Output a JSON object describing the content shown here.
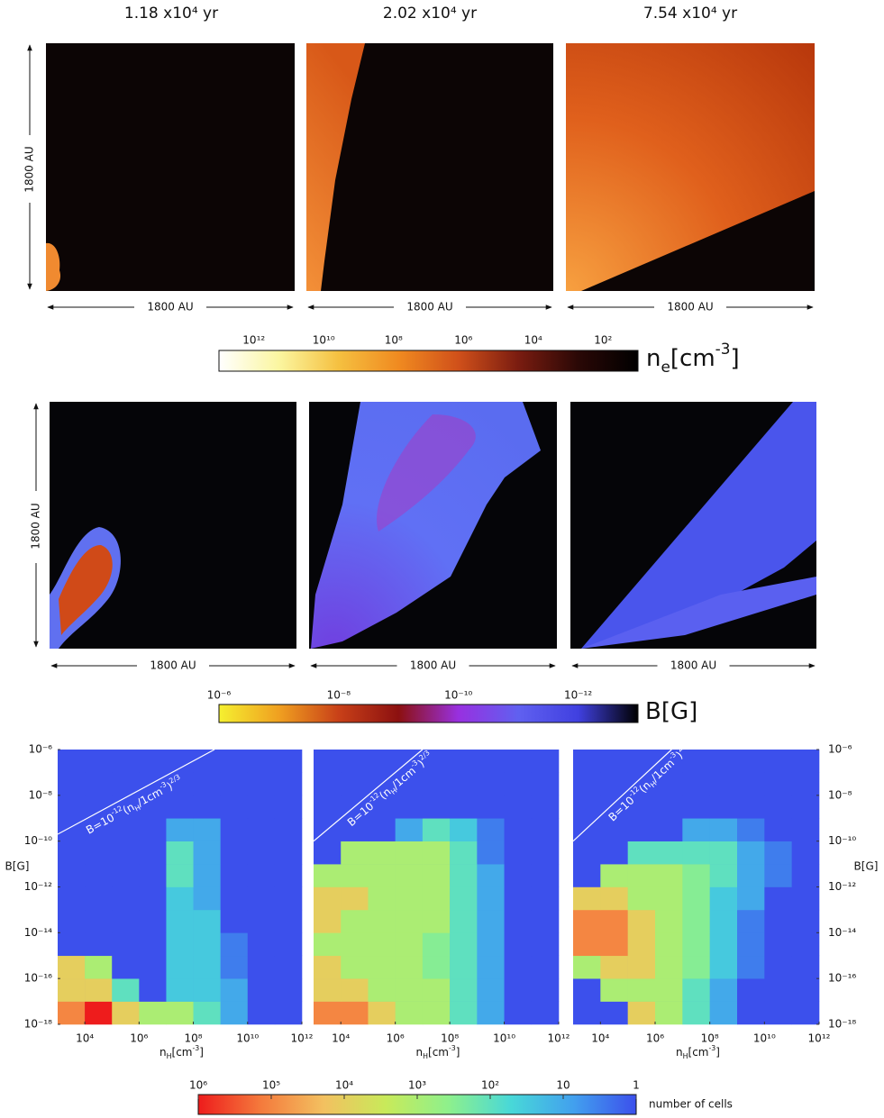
{
  "times": [
    "1.18 x10⁴ yr",
    "2.02 x10⁴ yr",
    "7.54 x10⁴ yr"
  ],
  "density_row": {
    "scale_y": "1800 AU",
    "scale_x": [
      "1800 AU",
      "1800 AU",
      "1800 AU"
    ],
    "colorbar": {
      "label": [
        {
          "t": "n"
        },
        {
          "t": "e",
          "sub": true
        },
        {
          "t": "[cm"
        },
        {
          "t": "-3",
          "sup": true
        },
        {
          "t": "]"
        }
      ],
      "clim": [
        10000000000000.0,
        10
      ],
      "log": true,
      "colors": [
        "#ffffff",
        "#fbf6a0",
        "#f5c040",
        "#f08a20",
        "#d0501a",
        "#7a1c10",
        "#2a0806",
        "#000000"
      ],
      "ticks": [
        {
          "value": 1000000000000.0,
          "label": "10¹²"
        },
        {
          "value": 10000000000.0,
          "label": "10¹⁰"
        },
        {
          "value": 100000000.0,
          "label": "10⁸"
        },
        {
          "value": 1000000.0,
          "label": "10⁶"
        },
        {
          "value": 10000.0,
          "label": "10⁴"
        },
        {
          "value": 100,
          "label": "10²"
        }
      ]
    }
  },
  "field_row": {
    "scale_y": "1800 AU",
    "scale_x": [
      "1800 AU",
      "1800 AU",
      "1800 AU"
    ],
    "colorbar": {
      "label": [
        {
          "t": "B[G]"
        }
      ],
      "clim": [
        1e-06,
        1e-13
      ],
      "log": true,
      "colors": [
        "#f5f030",
        "#f0a020",
        "#c84018",
        "#8c1010",
        "#9830e0",
        "#6060f0",
        "#4040e0",
        "#000000"
      ],
      "ticks": [
        {
          "value": 1e-06,
          "label": "10⁻⁶"
        },
        {
          "value": 1e-08,
          "label": "10⁻⁸"
        },
        {
          "value": 1e-10,
          "label": "10⁻¹⁰"
        },
        {
          "value": 1e-12,
          "label": "10⁻¹²"
        }
      ]
    }
  },
  "cells_colorbar": {
    "label": "number of cells",
    "clim": [
      1000000.0,
      1
    ],
    "log": true,
    "colors": [
      "#ee1c1c",
      "#f47a3c",
      "#f3c060",
      "#c8ea5a",
      "#8ef08c",
      "#48d8d8",
      "#42a0ee",
      "#3c50ec"
    ],
    "ticks": [
      {
        "value": 1000000.0,
        "label": "10⁶"
      },
      {
        "value": 100000.0,
        "label": "10⁵"
      },
      {
        "value": 10000.0,
        "label": "10⁴"
      },
      {
        "value": 1000.0,
        "label": "10³"
      },
      {
        "value": 100,
        "label": "10²"
      },
      10,
      1
    ]
  },
  "chart_data": [
    {
      "type": "heatmap",
      "log_x": true,
      "log_y": true,
      "xlim": [
        1000.0,
        1000000000000.0
      ],
      "ylim": [
        1e-18,
        1e-06
      ],
      "xticks": [
        {
          "value": 10000.0,
          "label": "10⁴"
        },
        {
          "value": 1000000.0,
          "label": "10⁶"
        },
        {
          "value": 100000000.0,
          "label": "10⁸"
        },
        {
          "value": 10000000000.0,
          "label": "10¹⁰"
        },
        {
          "value": 1000000000000.0,
          "label": "10¹²"
        }
      ],
      "yticks": [
        {
          "value": 1e-06,
          "label": "10⁻⁶"
        },
        {
          "value": 1e-08,
          "label": "10⁻⁸"
        },
        {
          "value": 1e-10,
          "label": "10⁻¹⁰"
        },
        {
          "value": 1e-12,
          "label": "10⁻¹²"
        },
        {
          "value": 1e-14,
          "label": "10⁻¹⁴"
        },
        {
          "value": 1e-16,
          "label": "10⁻¹⁶"
        },
        {
          "value": 1e-18,
          "label": "10⁻¹⁸"
        }
      ],
      "y_axis_side": "left",
      "y_label": "B[G]",
      "x_label": [
        {
          "t": "n"
        },
        {
          "t": "H",
          "sub": true
        },
        {
          "t": "[cm"
        },
        {
          "t": "-3",
          "sup": true
        },
        {
          "t": "]"
        }
      ],
      "annotation": [
        {
          "t": "B=10"
        },
        {
          "t": "-12",
          "sup": true
        },
        {
          "t": "(n"
        },
        {
          "t": "H",
          "sub": true
        },
        {
          "t": "/1cm"
        },
        {
          "t": "-3",
          "sup": true
        },
        {
          "t": ")"
        },
        {
          "t": "2/3",
          "sup": true
        }
      ],
      "relation_line": {
        "x": [
          1000.0,
          600000000.0
        ],
        "y": [
          2e-10,
          1e-06
        ]
      },
      "xbins": [
        1000.0,
        10000.0,
        100000.0,
        1000000.0,
        10000000.0,
        100000000.0,
        1000000000.0,
        10000000000.0,
        100000000000.0,
        1000000000000.0
      ],
      "ybins": [
        1e-18,
        1e-17,
        1e-16,
        1e-15,
        1e-14,
        1e-13,
        1e-12,
        1e-11,
        1e-10,
        1e-09,
        1e-08,
        1e-07,
        1e-06
      ],
      "z": [
        [
          100000.0,
          1000000.0,
          10000.0,
          1000.0,
          1000.0,
          100,
          10,
          1,
          1
        ],
        [
          10000.0,
          10000.0,
          100,
          1,
          30,
          30,
          10,
          1,
          1
        ],
        [
          10000.0,
          1000.0,
          1,
          1,
          30,
          30,
          3,
          1,
          1
        ],
        [
          1,
          1,
          1,
          1,
          30,
          30,
          3,
          1,
          1
        ],
        [
          1,
          1,
          1,
          1,
          30,
          30,
          1,
          1,
          1
        ],
        [
          1,
          1,
          1,
          1,
          30,
          10,
          1,
          1,
          1
        ],
        [
          1,
          1,
          1,
          1,
          100,
          10,
          1,
          1,
          1
        ],
        [
          1,
          1,
          1,
          1,
          100,
          10,
          1,
          1,
          1
        ],
        [
          1,
          1,
          1,
          1,
          10,
          10,
          1,
          1,
          1
        ],
        [
          1,
          1,
          1,
          1,
          1,
          1,
          1,
          1,
          1
        ],
        [
          1,
          1,
          1,
          1,
          1,
          1,
          1,
          1,
          1
        ],
        [
          1,
          1,
          1,
          1,
          1,
          1,
          1,
          1,
          1
        ]
      ]
    },
    {
      "type": "heatmap",
      "log_x": true,
      "log_y": true,
      "xlim": [
        1000.0,
        1000000000000.0
      ],
      "ylim": [
        1e-18,
        1e-06
      ],
      "xticks": [
        {
          "value": 10000.0,
          "label": "10⁴"
        },
        {
          "value": 1000000.0,
          "label": "10⁶"
        },
        {
          "value": 100000000.0,
          "label": "10⁸"
        },
        {
          "value": 10000000000.0,
          "label": "10¹⁰"
        },
        {
          "value": 1000000000000.0,
          "label": "10¹²"
        }
      ],
      "x_label": [
        {
          "t": "n"
        },
        {
          "t": "H",
          "sub": true
        },
        {
          "t": "[cm"
        },
        {
          "t": "-3",
          "sup": true
        },
        {
          "t": "]"
        }
      ],
      "annotation": [
        {
          "t": "B=10"
        },
        {
          "t": "-12",
          "sup": true
        },
        {
          "t": "(n"
        },
        {
          "t": "H",
          "sub": true
        },
        {
          "t": "/1cm"
        },
        {
          "t": "-3",
          "sup": true
        },
        {
          "t": ")"
        },
        {
          "t": "2/3",
          "sup": true
        }
      ],
      "relation_line": {
        "x": [
          1000.0,
          10000000.0
        ],
        "y": [
          1e-10,
          1e-06
        ]
      },
      "xbins": [
        1000.0,
        10000.0,
        100000.0,
        1000000.0,
        10000000.0,
        100000000.0,
        1000000000.0,
        10000000000.0,
        100000000000.0,
        1000000000000.0
      ],
      "ybins": [
        1e-18,
        1e-17,
        1e-16,
        1e-15,
        1e-14,
        1e-13,
        1e-12,
        1e-11,
        1e-10,
        1e-09,
        1e-08,
        1e-07,
        1e-06
      ],
      "z": [
        [
          100000.0,
          100000.0,
          10000.0,
          1000.0,
          1000.0,
          100,
          10,
          1,
          1
        ],
        [
          10000.0,
          10000.0,
          1000.0,
          1000.0,
          1000.0,
          100,
          10,
          1,
          1
        ],
        [
          10000.0,
          1000.0,
          1000.0,
          1000.0,
          300,
          100,
          10,
          1,
          1
        ],
        [
          1000.0,
          1000.0,
          1000.0,
          1000.0,
          300,
          100,
          10,
          1,
          1
        ],
        [
          10000.0,
          1000.0,
          1000.0,
          1000.0,
          1000.0,
          100,
          10,
          1,
          1
        ],
        [
          10000.0,
          10000.0,
          1000.0,
          1000.0,
          1000.0,
          100,
          10,
          1,
          1
        ],
        [
          1000.0,
          1000.0,
          1000.0,
          1000.0,
          1000.0,
          100,
          10,
          1,
          1
        ],
        [
          1,
          1000.0,
          1000.0,
          1000.0,
          1000.0,
          100,
          3,
          1,
          1
        ],
        [
          1,
          1,
          1,
          10,
          100,
          30,
          3,
          1,
          1
        ],
        [
          1,
          1,
          1,
          1,
          1,
          1,
          1,
          1,
          1
        ],
        [
          1,
          1,
          1,
          1,
          1,
          1,
          1,
          1,
          1
        ],
        [
          1,
          1,
          1,
          1,
          1,
          1,
          1,
          1,
          1
        ]
      ]
    },
    {
      "type": "heatmap",
      "log_x": true,
      "log_y": true,
      "xlim": [
        1000.0,
        1000000000000.0
      ],
      "ylim": [
        1e-18,
        1e-06
      ],
      "xticks": [
        {
          "value": 10000.0,
          "label": "10⁴"
        },
        {
          "value": 1000000.0,
          "label": "10⁶"
        },
        {
          "value": 100000000.0,
          "label": "10⁸"
        },
        {
          "value": 10000000000.0,
          "label": "10¹⁰"
        },
        {
          "value": 1000000000000.0,
          "label": "10¹²"
        }
      ],
      "yticks": [
        {
          "value": 1e-06,
          "label": "10⁻⁶"
        },
        {
          "value": 1e-08,
          "label": "10⁻⁸"
        },
        {
          "value": 1e-10,
          "label": "10⁻¹⁰"
        },
        {
          "value": 1e-12,
          "label": "10⁻¹²"
        },
        {
          "value": 1e-14,
          "label": "10⁻¹⁴"
        },
        {
          "value": 1e-16,
          "label": "10⁻¹⁶"
        },
        {
          "value": 1e-18,
          "label": "10⁻¹⁸"
        }
      ],
      "y_axis_side": "right",
      "y_label": "B[G]",
      "x_label": [
        {
          "t": "n"
        },
        {
          "t": "H",
          "sub": true
        },
        {
          "t": "[cm"
        },
        {
          "t": "-3",
          "sup": true
        },
        {
          "t": "]"
        }
      ],
      "annotation": [
        {
          "t": "B=10"
        },
        {
          "t": "-12",
          "sup": true
        },
        {
          "t": "(n"
        },
        {
          "t": "H",
          "sub": true
        },
        {
          "t": "/1cm"
        },
        {
          "t": "-3",
          "sup": true
        },
        {
          "t": ")"
        },
        {
          "t": "2/3",
          "sup": true
        }
      ],
      "relation_line": {
        "x": [
          1000.0,
          4000000.0
        ],
        "y": [
          1e-10,
          1e-06
        ]
      },
      "xbins": [
        1000.0,
        10000.0,
        100000.0,
        1000000.0,
        10000000.0,
        100000000.0,
        1000000000.0,
        10000000000.0,
        100000000000.0,
        1000000000000.0
      ],
      "ybins": [
        1e-18,
        1e-17,
        1e-16,
        1e-15,
        1e-14,
        1e-13,
        1e-12,
        1e-11,
        1e-10,
        1e-09,
        1e-08,
        1e-07,
        1e-06
      ],
      "z": [
        [
          1,
          1,
          10000.0,
          1000.0,
          100,
          10,
          1,
          1,
          1
        ],
        [
          1,
          1000.0,
          1000.0,
          1000.0,
          100,
          10,
          1,
          1,
          1
        ],
        [
          1000.0,
          10000.0,
          10000.0,
          1000.0,
          300,
          30,
          3,
          1,
          1
        ],
        [
          100000.0,
          100000.0,
          10000.0,
          1000.0,
          300,
          30,
          3,
          1,
          1
        ],
        [
          100000.0,
          100000.0,
          10000.0,
          1000.0,
          300,
          30,
          3,
          1,
          1
        ],
        [
          10000.0,
          10000.0,
          1000.0,
          1000.0,
          300,
          30,
          10,
          1,
          1
        ],
        [
          1,
          1000.0,
          1000.0,
          1000.0,
          300,
          100,
          10,
          3,
          1
        ],
        [
          1,
          1,
          100,
          100,
          100,
          100,
          10,
          3,
          1
        ],
        [
          1,
          1,
          1,
          1,
          10,
          10,
          3,
          1,
          1
        ],
        [
          1,
          1,
          1,
          1,
          1,
          1,
          1,
          1,
          1
        ],
        [
          1,
          1,
          1,
          1,
          1,
          1,
          1,
          1,
          1
        ],
        [
          1,
          1,
          1,
          1,
          1,
          1,
          1,
          1,
          1
        ]
      ]
    }
  ]
}
